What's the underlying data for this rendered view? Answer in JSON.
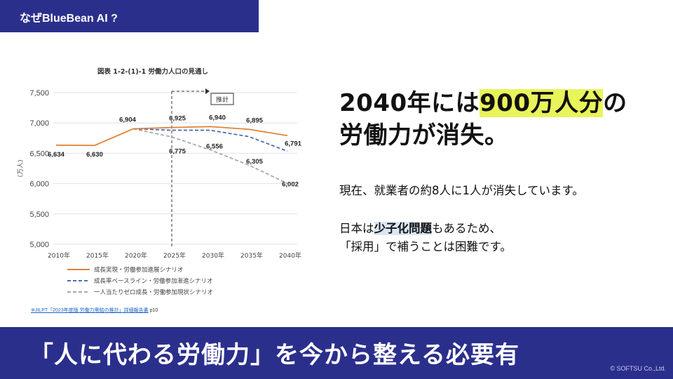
{
  "header": {
    "tab_label": "なぜBlueBean AI ?"
  },
  "chart_data": {
    "type": "line",
    "title": "図表 1-2-(1)-1 労働力人口の見通し",
    "ylabel": "(万人)",
    "xlabel": "",
    "ylim": [
      5000,
      7500
    ],
    "yticks": [
      "7,500",
      "7,000",
      "6,500",
      "6,000",
      "5,500",
      "5,000"
    ],
    "categories": [
      "2010年",
      "2015年",
      "2020年",
      "2025年",
      "2030年",
      "2035年",
      "2040年"
    ],
    "series": [
      {
        "name": "成長実現・労働参加進展シナリオ",
        "color": "#e0843a",
        "style": "solid",
        "values": [
          6634,
          6630,
          6904,
          6925,
          6940,
          6895,
          6791
        ]
      },
      {
        "name": "成長率ベースライン・労働参加漸進シナリオ",
        "color": "#4a6fb5",
        "style": "dashed",
        "values": [
          null,
          null,
          6904,
          6880,
          6880,
          6775,
          6535
        ]
      },
      {
        "name": "一人当たりゼロ成長・労働参加現状シナリオ",
        "color": "#a9a9a9",
        "style": "dashed",
        "values": [
          null,
          null,
          6904,
          6770,
          6556,
          6305,
          6002
        ]
      }
    ],
    "data_labels": [
      "6,634",
      "6,630",
      "6,904",
      "6,925",
      "6,940",
      "6,895",
      "6,791",
      "6,775",
      "6,556",
      "6,305",
      "6,002"
    ],
    "annotation": "推計",
    "grid": true,
    "legend": "bottom-left"
  },
  "source": {
    "link_text": "※JILPT「2023年度版 労働力需給の推計」詳細報告書",
    "page": " p10"
  },
  "headline": {
    "pre": "2040年には",
    "highlight": "900万人分",
    "post": "の",
    "line2": "労働力が消失。"
  },
  "body": {
    "p1": "現在、就業者の約8人に1人が消失しています。",
    "p2_pre": "日本は",
    "p2_emph": "少子化問題",
    "p2_post": "もあるため、",
    "p3": "「採用」で補うことは困難です。"
  },
  "footer": {
    "message": "「人に代わる労働力」を今から整える必要有",
    "copyright": "© SOFTSU Co.,Ltd."
  }
}
